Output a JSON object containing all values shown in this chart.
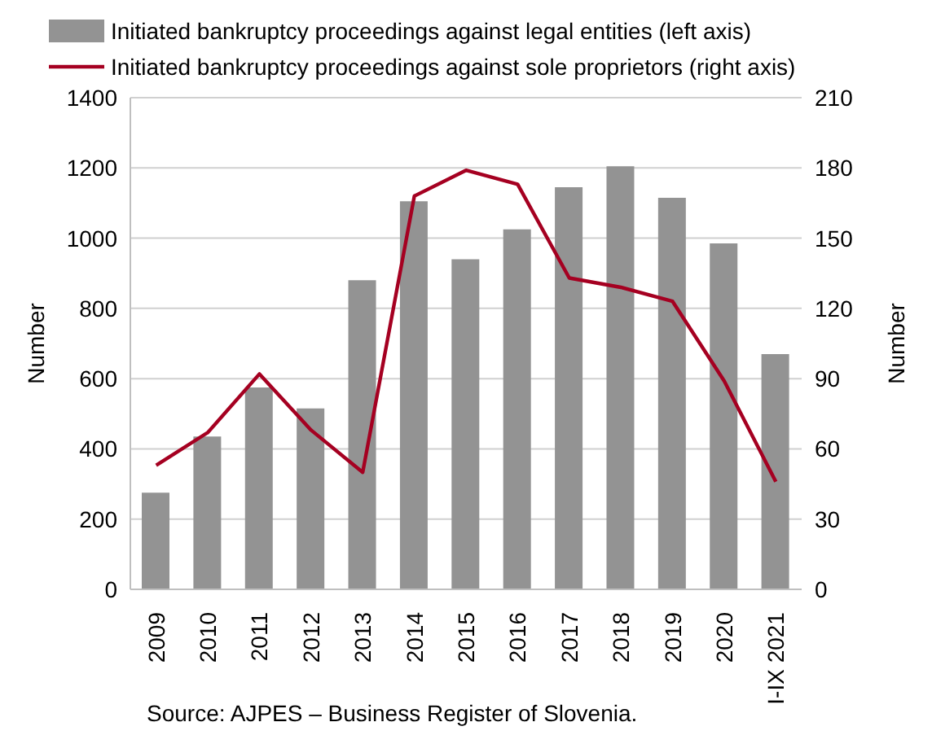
{
  "chart_data": {
    "type": "bar",
    "categories": [
      "2009",
      "2010",
      "2011",
      "2012",
      "2013",
      "2014",
      "2015",
      "2016",
      "2017",
      "2018",
      "2019",
      "2020",
      "I-IX 2021"
    ],
    "series": [
      {
        "name": "Initiated bankruptcy proceedings against legal entities (left axis)",
        "color": "#939393",
        "values": [
          275,
          435,
          575,
          515,
          880,
          1105,
          940,
          1025,
          1145,
          1205,
          1115,
          985,
          670
        ]
      },
      {
        "name": "Initiated bankruptcy proceedings against sole proprietors (right axis)",
        "type": "line",
        "axis": "y2",
        "color": "#a50021",
        "values": [
          53,
          67,
          92,
          68,
          50,
          168,
          179,
          173,
          133,
          129,
          123,
          89,
          46
        ]
      }
    ],
    "ylabel": "Number",
    "y2label": "Number",
    "ylim": [
      0,
      1400
    ],
    "yticks": [
      0,
      200,
      400,
      600,
      800,
      1000,
      1200,
      1400
    ],
    "y2lim": [
      0,
      210
    ],
    "y2ticks": [
      0,
      30,
      60,
      90,
      120,
      150,
      180,
      210
    ],
    "grid": "y",
    "legend": "top",
    "marker": "none",
    "annotations": [
      "Source: AJPES – Business Register of Slovenia."
    ]
  }
}
